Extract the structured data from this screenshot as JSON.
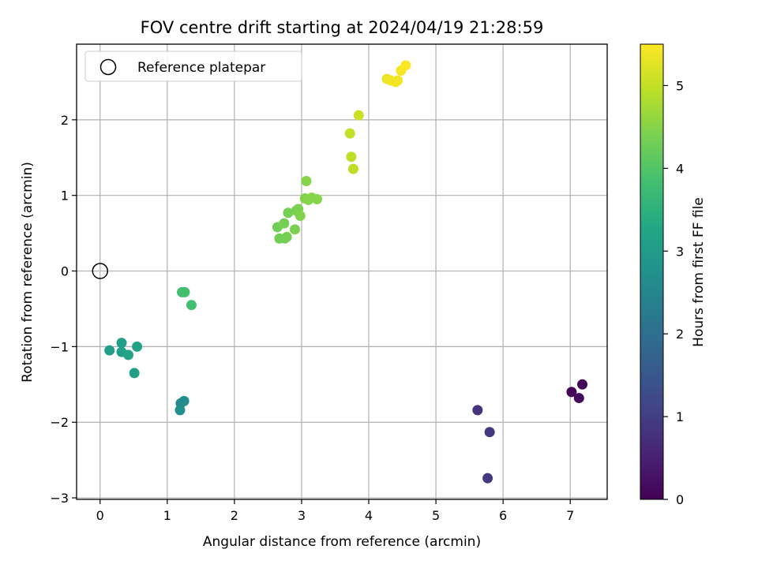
{
  "chart_data": {
    "type": "scatter",
    "title": "FOV centre drift starting at 2024/04/19 21:28:59",
    "xlabel": "Angular distance from reference (arcmin)",
    "ylabel": "Rotation from reference (arcmin)",
    "xlim": [
      -0.35,
      7.55
    ],
    "ylim": [
      -3.02,
      3.0
    ],
    "x_ticks": [
      0,
      1,
      2,
      3,
      4,
      5,
      6,
      7
    ],
    "x_tick_labels": [
      "0",
      "1",
      "2",
      "3",
      "4",
      "5",
      "6",
      "7"
    ],
    "y_ticks": [
      -3,
      -2,
      -1,
      0,
      1,
      2
    ],
    "y_tick_labels": [
      "−3",
      "−2",
      "−1",
      "0",
      "1",
      "2"
    ],
    "grid": true,
    "legend": {
      "placement": "upper-left",
      "label": "Reference platepar"
    },
    "reference_point": {
      "x": 0,
      "y": 0
    },
    "colorbar": {
      "label": "Hours from first FF file",
      "range": [
        0,
        5.5
      ],
      "ticks": [
        0,
        1,
        2,
        3,
        4,
        5
      ],
      "tick_labels": [
        "0",
        "1",
        "2",
        "3",
        "4",
        "5"
      ],
      "colormap": "viridis"
    },
    "points": [
      {
        "x": 7.02,
        "y": -1.6,
        "t": 0.05
      },
      {
        "x": 7.18,
        "y": -1.5,
        "t": 0.1
      },
      {
        "x": 7.13,
        "y": -1.68,
        "t": 0.15
      },
      {
        "x": 5.62,
        "y": -1.84,
        "t": 0.8
      },
      {
        "x": 5.8,
        "y": -2.13,
        "t": 0.85
      },
      {
        "x": 5.77,
        "y": -2.74,
        "t": 0.9
      },
      {
        "x": 1.2,
        "y": -1.75,
        "t": 2.6
      },
      {
        "x": 1.25,
        "y": -1.72,
        "t": 2.65
      },
      {
        "x": 1.19,
        "y": -1.84,
        "t": 2.7
      },
      {
        "x": 0.14,
        "y": -1.05,
        "t": 3.05
      },
      {
        "x": 0.32,
        "y": -0.95,
        "t": 3.1
      },
      {
        "x": 0.32,
        "y": -1.07,
        "t": 3.1
      },
      {
        "x": 0.42,
        "y": -1.11,
        "t": 3.15
      },
      {
        "x": 0.55,
        "y": -1.0,
        "t": 3.15
      },
      {
        "x": 0.51,
        "y": -1.35,
        "t": 3.1
      },
      {
        "x": 1.22,
        "y": -0.28,
        "t": 3.8
      },
      {
        "x": 1.26,
        "y": -0.28,
        "t": 3.85
      },
      {
        "x": 1.36,
        "y": -0.45,
        "t": 3.85
      },
      {
        "x": 2.64,
        "y": 0.58,
        "t": 4.3
      },
      {
        "x": 2.67,
        "y": 0.43,
        "t": 4.3
      },
      {
        "x": 2.75,
        "y": 0.43,
        "t": 4.3
      },
      {
        "x": 2.78,
        "y": 0.45,
        "t": 4.35
      },
      {
        "x": 2.74,
        "y": 0.63,
        "t": 4.35
      },
      {
        "x": 2.8,
        "y": 0.77,
        "t": 4.35
      },
      {
        "x": 2.9,
        "y": 0.55,
        "t": 4.4
      },
      {
        "x": 2.92,
        "y": 0.8,
        "t": 4.4
      },
      {
        "x": 2.95,
        "y": 0.82,
        "t": 4.4
      },
      {
        "x": 2.98,
        "y": 0.73,
        "t": 4.45
      },
      {
        "x": 3.05,
        "y": 0.96,
        "t": 4.45
      },
      {
        "x": 3.07,
        "y": 1.19,
        "t": 4.5
      },
      {
        "x": 3.1,
        "y": 0.94,
        "t": 4.5
      },
      {
        "x": 3.15,
        "y": 0.97,
        "t": 4.5
      },
      {
        "x": 3.23,
        "y": 0.95,
        "t": 4.5
      },
      {
        "x": 3.72,
        "y": 1.82,
        "t": 5.0
      },
      {
        "x": 3.74,
        "y": 1.51,
        "t": 4.95
      },
      {
        "x": 3.77,
        "y": 1.35,
        "t": 4.95
      },
      {
        "x": 3.85,
        "y": 2.06,
        "t": 5.05
      },
      {
        "x": 4.27,
        "y": 2.54,
        "t": 5.35
      },
      {
        "x": 4.33,
        "y": 2.52,
        "t": 5.4
      },
      {
        "x": 4.4,
        "y": 2.5,
        "t": 5.4
      },
      {
        "x": 4.43,
        "y": 2.52,
        "t": 5.4
      },
      {
        "x": 4.48,
        "y": 2.65,
        "t": 5.45
      },
      {
        "x": 4.55,
        "y": 2.72,
        "t": 5.5
      }
    ]
  }
}
